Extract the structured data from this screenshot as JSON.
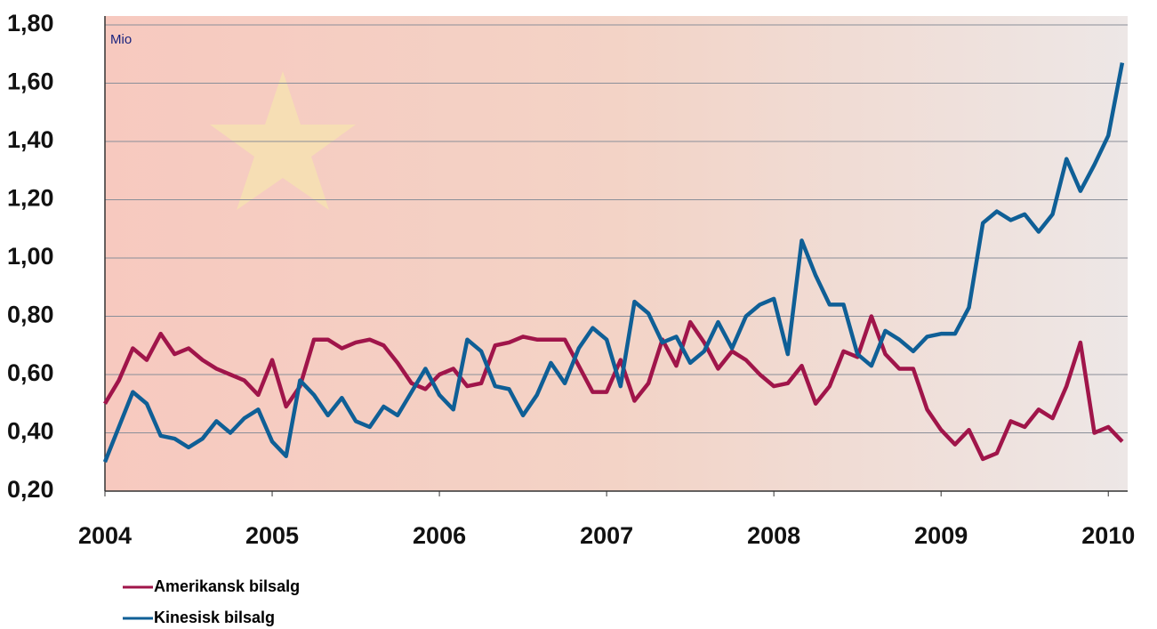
{
  "chart_data": {
    "type": "line",
    "annotation": "Mio",
    "categories": [
      "2004",
      null,
      null,
      null,
      null,
      null,
      null,
      null,
      null,
      null,
      null,
      null,
      "2005",
      null,
      null,
      null,
      null,
      null,
      null,
      null,
      null,
      null,
      null,
      null,
      "2006",
      null,
      null,
      null,
      null,
      null,
      null,
      null,
      null,
      null,
      null,
      null,
      "2007",
      null,
      null,
      null,
      null,
      null,
      null,
      null,
      null,
      null,
      null,
      null,
      "2008",
      null,
      null,
      null,
      null,
      null,
      null,
      null,
      null,
      null,
      null,
      null,
      "2009",
      null,
      null,
      null,
      null,
      null,
      null,
      null,
      null,
      null,
      null,
      null,
      "2010",
      null
    ],
    "series": [
      {
        "name": "Amerikansk bilsalg",
        "color": "#a0154a",
        "values": [
          0.5,
          0.58,
          0.69,
          0.65,
          0.74,
          0.67,
          0.69,
          0.65,
          0.62,
          0.6,
          0.58,
          0.53,
          0.65,
          0.49,
          0.56,
          0.72,
          0.72,
          0.69,
          0.71,
          0.72,
          0.7,
          0.64,
          0.57,
          0.55,
          0.6,
          0.62,
          0.56,
          0.57,
          0.7,
          0.71,
          0.73,
          0.72,
          0.72,
          0.72,
          0.63,
          0.54,
          0.54,
          0.65,
          0.51,
          0.57,
          0.72,
          0.63,
          0.78,
          0.71,
          0.62,
          0.68,
          0.65,
          0.6,
          0.56,
          0.57,
          0.63,
          0.5,
          0.56,
          0.68,
          0.66,
          0.8,
          0.67,
          0.62,
          0.62,
          0.48,
          0.41,
          0.36,
          0.41,
          0.31,
          0.33,
          0.44,
          0.42,
          0.48,
          0.45,
          0.56,
          0.71,
          0.4,
          0.42,
          0.37
        ]
      },
      {
        "name": "Kinesisk bilsalg",
        "color": "#0f5f96",
        "values": [
          0.3,
          0.42,
          0.54,
          0.5,
          0.39,
          0.38,
          0.35,
          0.38,
          0.44,
          0.4,
          0.45,
          0.48,
          0.37,
          0.32,
          0.58,
          0.53,
          0.46,
          0.52,
          0.44,
          0.42,
          0.49,
          0.46,
          0.54,
          0.62,
          0.53,
          0.48,
          0.72,
          0.68,
          0.56,
          0.55,
          0.46,
          0.53,
          0.64,
          0.57,
          0.69,
          0.76,
          0.72,
          0.56,
          0.85,
          0.81,
          0.71,
          0.73,
          0.64,
          0.68,
          0.78,
          0.69,
          0.8,
          0.84,
          0.86,
          0.67,
          1.06,
          0.94,
          0.84,
          0.84,
          0.67,
          0.63,
          0.75,
          0.72,
          0.68,
          0.73,
          0.74,
          0.74,
          0.83,
          1.12,
          1.16,
          1.13,
          1.15,
          1.09,
          1.15,
          1.34,
          1.23,
          1.32,
          1.42,
          1.67
        ]
      }
    ],
    "ylim": [
      0.2,
      1.8
    ],
    "yticks": [
      {
        "value": 0.2,
        "label": "0,20"
      },
      {
        "value": 0.4,
        "label": "0,40"
      },
      {
        "value": 0.6,
        "label": "0,60"
      },
      {
        "value": 0.8,
        "label": "0,80"
      },
      {
        "value": 1.0,
        "label": "1,00"
      },
      {
        "value": 1.2,
        "label": "1,20"
      },
      {
        "value": 1.4,
        "label": "1,40"
      },
      {
        "value": 1.6,
        "label": "1,60"
      },
      {
        "value": 1.8,
        "label": "1,80"
      }
    ],
    "grid": true
  }
}
